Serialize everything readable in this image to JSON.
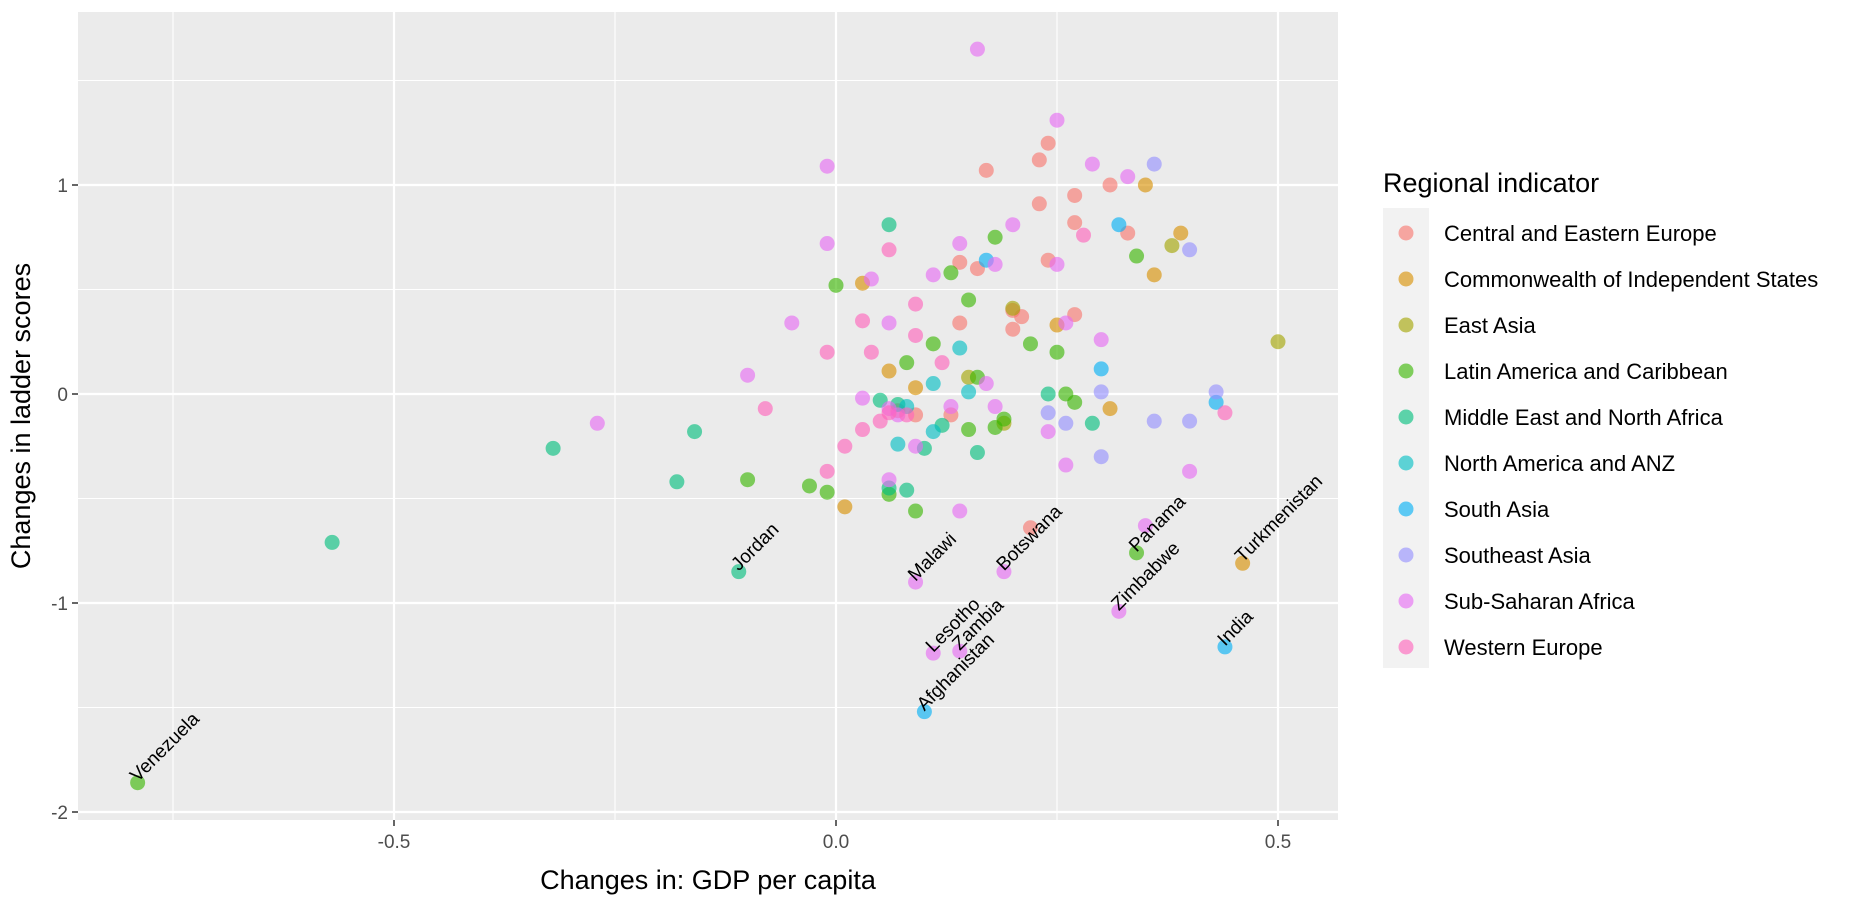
{
  "chart_data": {
    "type": "scatter",
    "xlabel": "Changes in: GDP per capita",
    "ylabel": "Changes in ladder scores",
    "xlim": [
      -0.85,
      0.56
    ],
    "ylim": [
      -2.05,
      1.85
    ],
    "x_ticks": [
      -0.5,
      0.0,
      0.5
    ],
    "x_tick_labels": [
      "-0.5",
      "0.0",
      "0.5"
    ],
    "y_ticks": [
      -2,
      -1,
      0,
      1
    ],
    "y_tick_labels": [
      "-2",
      "-1",
      "0",
      "1"
    ],
    "grid": true,
    "legend": {
      "title": "Regional indicator",
      "position": "right"
    },
    "series": [
      {
        "name": "Central and Eastern Europe",
        "color": "#F8766D",
        "points": [
          [
            0.17,
            1.07
          ],
          [
            0.23,
            1.12
          ],
          [
            0.24,
            1.2
          ],
          [
            0.27,
            0.95
          ],
          [
            0.31,
            1.0
          ],
          [
            0.33,
            0.77
          ],
          [
            0.27,
            0.82
          ],
          [
            0.23,
            0.91
          ],
          [
            0.24,
            0.64
          ],
          [
            0.2,
            0.4
          ],
          [
            0.21,
            0.37
          ],
          [
            0.27,
            0.38
          ],
          [
            0.2,
            0.31
          ],
          [
            0.14,
            0.63
          ],
          [
            0.14,
            0.34
          ],
          [
            0.16,
            0.6
          ],
          [
            0.22,
            -0.64
          ],
          [
            0.07,
            -0.08
          ],
          [
            0.09,
            -0.1
          ],
          [
            0.13,
            -0.1
          ]
        ]
      },
      {
        "name": "Commonwealth of Independent States",
        "color": "#D89000",
        "points": [
          [
            0.35,
            1.0
          ],
          [
            0.39,
            0.77
          ],
          [
            0.36,
            0.57
          ],
          [
            0.03,
            0.53
          ],
          [
            0.06,
            0.11
          ],
          [
            0.09,
            0.03
          ],
          [
            0.01,
            -0.54
          ],
          [
            0.31,
            -0.07
          ],
          [
            0.25,
            0.33
          ],
          [
            0.46,
            -0.81
          ]
        ]
      },
      {
        "name": "East Asia",
        "color": "#A3A500",
        "points": [
          [
            0.5,
            0.25
          ],
          [
            0.38,
            0.71
          ],
          [
            0.2,
            0.41
          ],
          [
            0.19,
            -0.14
          ],
          [
            0.15,
            0.08
          ]
        ]
      },
      {
        "name": "Latin America and Caribbean",
        "color": "#39B600",
        "points": [
          [
            0.18,
            0.75
          ],
          [
            0.13,
            0.58
          ],
          [
            0.15,
            0.45
          ],
          [
            0.0,
            0.52
          ],
          [
            0.11,
            0.24
          ],
          [
            0.08,
            0.15
          ],
          [
            0.22,
            0.24
          ],
          [
            0.25,
            0.2
          ],
          [
            0.26,
            0.0
          ],
          [
            0.27,
            -0.04
          ],
          [
            0.18,
            -0.16
          ],
          [
            0.19,
            -0.12
          ],
          [
            0.16,
            0.08
          ],
          [
            0.15,
            -0.17
          ],
          [
            -0.1,
            -0.41
          ],
          [
            -0.03,
            -0.44
          ],
          [
            -0.01,
            -0.47
          ],
          [
            0.06,
            -0.48
          ],
          [
            0.09,
            -0.56
          ],
          [
            0.34,
            -0.76
          ],
          [
            0.34,
            0.66
          ],
          [
            -0.79,
            -1.86
          ]
        ]
      },
      {
        "name": "Middle East and North Africa",
        "color": "#00BF7D",
        "points": [
          [
            0.06,
            0.81
          ],
          [
            -0.16,
            -0.18
          ],
          [
            -0.32,
            -0.26
          ],
          [
            -0.18,
            -0.42
          ],
          [
            -0.57,
            -0.71
          ],
          [
            -0.11,
            -0.85
          ],
          [
            0.05,
            -0.03
          ],
          [
            0.07,
            -0.05
          ],
          [
            0.08,
            -0.46
          ],
          [
            0.06,
            -0.45
          ],
          [
            0.1,
            -0.26
          ],
          [
            0.12,
            -0.15
          ],
          [
            0.16,
            -0.28
          ],
          [
            0.29,
            -0.14
          ],
          [
            0.24,
            0.0
          ]
        ]
      },
      {
        "name": "North America and ANZ",
        "color": "#00BFC4",
        "points": [
          [
            0.11,
            0.05
          ],
          [
            0.14,
            0.22
          ],
          [
            0.15,
            0.01
          ],
          [
            0.11,
            -0.18
          ],
          [
            0.07,
            -0.24
          ],
          [
            0.08,
            -0.06
          ]
        ]
      },
      {
        "name": "South Asia",
        "color": "#00B0F6",
        "points": [
          [
            0.32,
            0.81
          ],
          [
            0.17,
            0.64
          ],
          [
            0.3,
            0.12
          ],
          [
            0.43,
            -0.04
          ],
          [
            0.44,
            -1.21
          ],
          [
            0.1,
            -1.52
          ]
        ]
      },
      {
        "name": "Southeast Asia",
        "color": "#9590FF",
        "points": [
          [
            0.36,
            1.1
          ],
          [
            0.4,
            0.69
          ],
          [
            0.43,
            0.01
          ],
          [
            0.4,
            -0.13
          ],
          [
            0.36,
            -0.13
          ],
          [
            0.3,
            0.01
          ],
          [
            0.3,
            -0.3
          ],
          [
            0.24,
            -0.09
          ],
          [
            0.26,
            -0.14
          ]
        ]
      },
      {
        "name": "Sub-Saharan Africa",
        "color": "#E76BF3",
        "points": [
          [
            0.16,
            1.65
          ],
          [
            0.25,
            1.31
          ],
          [
            0.29,
            1.1
          ],
          [
            0.33,
            1.04
          ],
          [
            -0.01,
            1.09
          ],
          [
            -0.01,
            0.72
          ],
          [
            0.14,
            0.72
          ],
          [
            0.2,
            0.81
          ],
          [
            0.18,
            0.62
          ],
          [
            0.25,
            0.62
          ],
          [
            0.11,
            0.57
          ],
          [
            0.04,
            0.55
          ],
          [
            -0.05,
            0.34
          ],
          [
            0.06,
            0.34
          ],
          [
            0.26,
            0.34
          ],
          [
            0.3,
            0.26
          ],
          [
            -0.1,
            0.09
          ],
          [
            0.17,
            0.05
          ],
          [
            0.13,
            -0.06
          ],
          [
            0.18,
            -0.06
          ],
          [
            0.03,
            -0.02
          ],
          [
            0.06,
            -0.07
          ],
          [
            0.07,
            -0.1
          ],
          [
            0.09,
            -0.25
          ],
          [
            0.06,
            -0.41
          ],
          [
            0.14,
            -0.56
          ],
          [
            -0.27,
            -0.14
          ],
          [
            0.26,
            -0.34
          ],
          [
            0.4,
            -0.37
          ],
          [
            0.35,
            -0.63
          ],
          [
            0.09,
            -0.9
          ],
          [
            0.19,
            -0.85
          ],
          [
            0.32,
            -1.04
          ],
          [
            0.11,
            -1.24
          ],
          [
            0.14,
            -1.23
          ],
          [
            0.24,
            -0.18
          ]
        ]
      },
      {
        "name": "Western Europe",
        "color": "#FF62BC",
        "points": [
          [
            0.06,
            0.69
          ],
          [
            0.28,
            0.76
          ],
          [
            0.09,
            0.43
          ],
          [
            0.03,
            0.35
          ],
          [
            0.09,
            0.28
          ],
          [
            -0.01,
            0.2
          ],
          [
            0.04,
            0.2
          ],
          [
            0.12,
            0.15
          ],
          [
            -0.08,
            -0.07
          ],
          [
            0.03,
            -0.17
          ],
          [
            -0.01,
            -0.37
          ],
          [
            0.01,
            -0.25
          ],
          [
            0.05,
            -0.13
          ],
          [
            0.44,
            -0.09
          ],
          [
            0.06,
            -0.09
          ],
          [
            0.08,
            -0.1
          ]
        ]
      }
    ],
    "annotations": [
      {
        "text": "Venezuela",
        "x": -0.79,
        "y": -1.86
      },
      {
        "text": "Jordan",
        "x": -0.11,
        "y": -0.85
      },
      {
        "text": "Malawi",
        "x": 0.09,
        "y": -0.9
      },
      {
        "text": "Botswana",
        "x": 0.19,
        "y": -0.85
      },
      {
        "text": "Lesotho",
        "x": 0.11,
        "y": -1.24
      },
      {
        "text": "Zambia",
        "x": 0.14,
        "y": -1.23
      },
      {
        "text": "Afghanistan",
        "x": 0.1,
        "y": -1.52
      },
      {
        "text": "Panama",
        "x": 0.34,
        "y": -0.76
      },
      {
        "text": "Zimbabwe",
        "x": 0.32,
        "y": -1.04
      },
      {
        "text": "Turkmenistan",
        "x": 0.46,
        "y": -0.81
      },
      {
        "text": "India",
        "x": 0.44,
        "y": -1.21
      }
    ]
  }
}
